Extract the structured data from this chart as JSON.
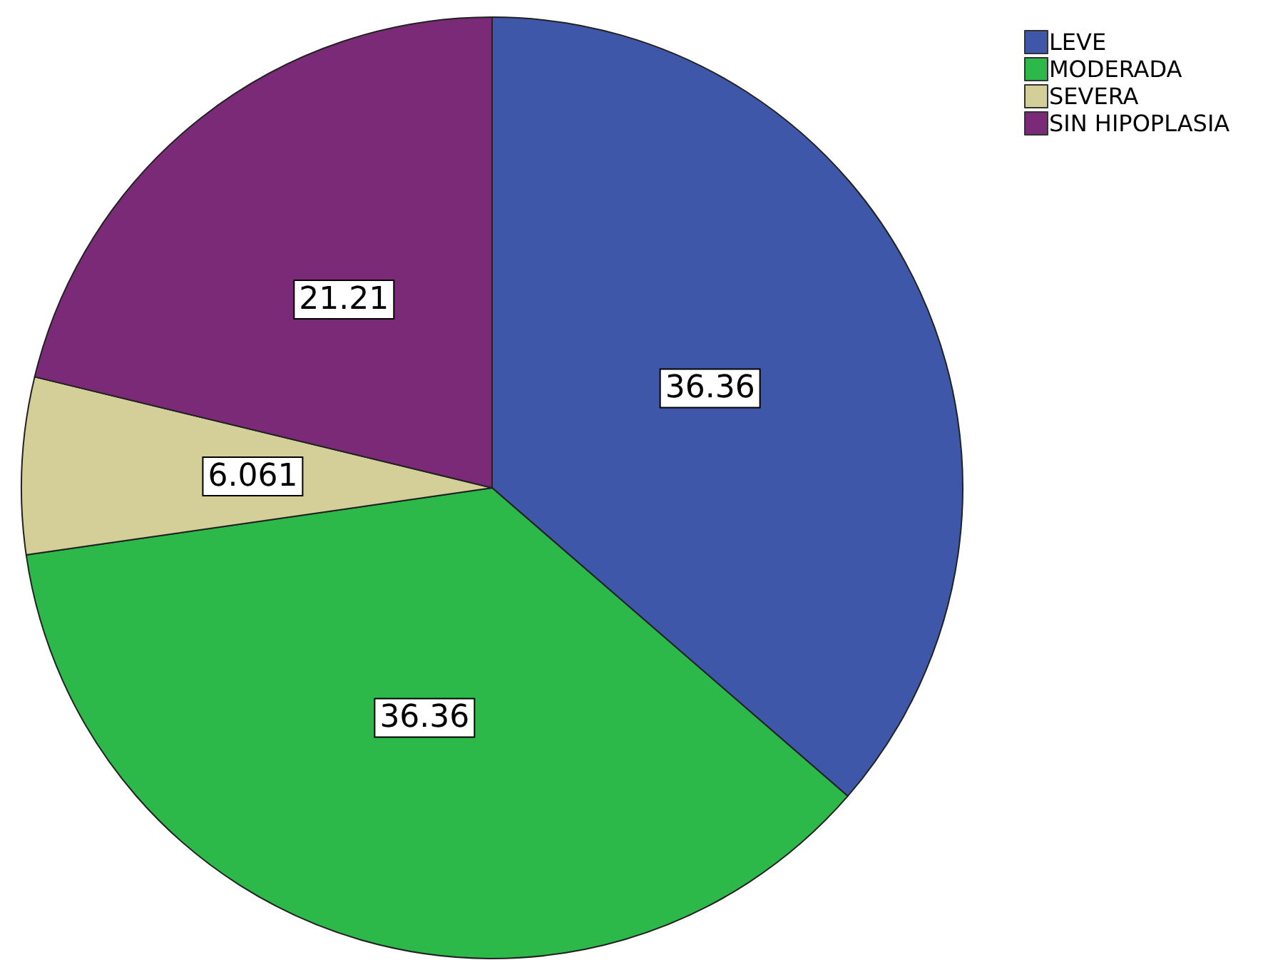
{
  "chart_data": {
    "type": "pie",
    "categories": [
      "LEVE",
      "MODERADA",
      "SEVERA",
      "SIN HIPOPLASIA"
    ],
    "values": [
      36.36,
      36.36,
      6.061,
      21.21
    ],
    "colors": [
      "#3f57a9",
      "#2db84a",
      "#d4cf98",
      "#7b2a77"
    ],
    "data_labels": true,
    "legend": "top right"
  }
}
